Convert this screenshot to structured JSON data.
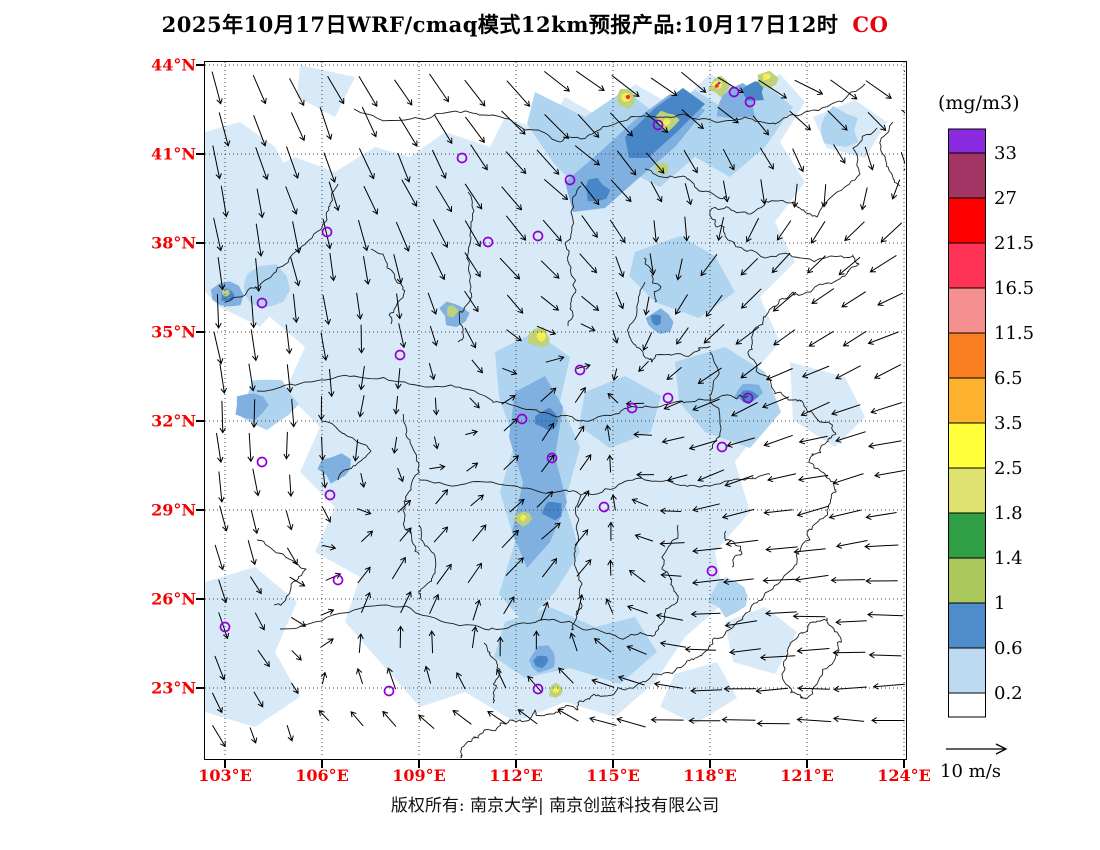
{
  "title": {
    "text": "2025年10月17日WRF/cmaq模式12km预报产品:10月17日12时",
    "pollutant": "CO"
  },
  "axes": {
    "lat_labels": [
      "44°N",
      "41°N",
      "38°N",
      "35°N",
      "32°N",
      "29°N",
      "26°N",
      "23°N"
    ],
    "lon_labels": [
      "103°E",
      "106°E",
      "109°E",
      "112°E",
      "115°E",
      "118°E",
      "121°E",
      "124°E"
    ]
  },
  "legend": {
    "unit": "(mg/m3)",
    "boundaries": [
      "33",
      "27",
      "21.5",
      "16.5",
      "11.5",
      "6.5",
      "3.5",
      "2.5",
      "1.8",
      "1.4",
      "1",
      "0.6",
      "0.2"
    ],
    "colors": [
      "#8A2BE2",
      "#A23563",
      "#FF0000",
      "#FF3355",
      "#F59090",
      "#F97E20",
      "#FCB22F",
      "#FFFF3A",
      "#DDE36E",
      "#2F9E44",
      "#A9C75B",
      "#4E8CCB",
      "#BCDAF2",
      "#FFFFFF"
    ]
  },
  "wind_scale": {
    "label": "10 m/s"
  },
  "footer": {
    "text": "版权所有: 南京大学| 南京创蓝科技有限公司"
  },
  "colors": {
    "axis_label": "#F40000",
    "title": "#000000",
    "pollutant": "#E8000A"
  }
}
